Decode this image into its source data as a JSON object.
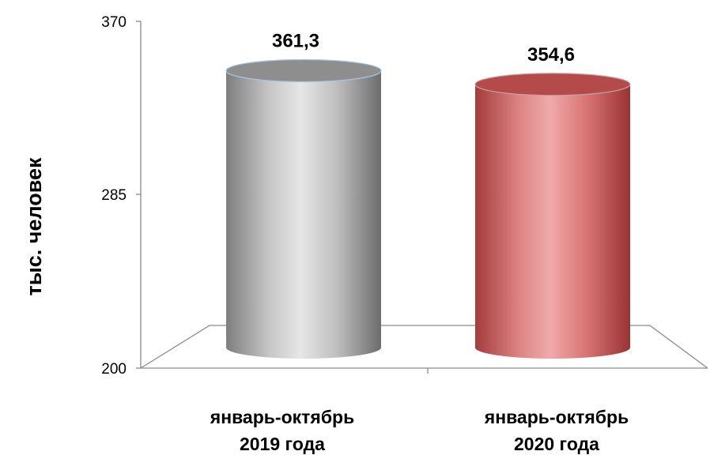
{
  "chart_data": {
    "type": "bar",
    "style": "3d-cylinder",
    "categories": [
      [
        "январь-октябрь",
        "2019 года"
      ],
      [
        "январь-октябрь",
        "2020 года"
      ]
    ],
    "values": [
      361.3,
      354.6
    ],
    "value_labels": [
      "361,3",
      "354,6"
    ],
    "ylabel": "тыс. человек",
    "ylim": [
      200,
      370
    ],
    "yticks": [
      200,
      285,
      370
    ],
    "ytick_labels": [
      "200",
      "285",
      "370"
    ],
    "grid": false,
    "legend": "none",
    "colors": [
      "#b3b3b3",
      "#d26f6f"
    ]
  }
}
